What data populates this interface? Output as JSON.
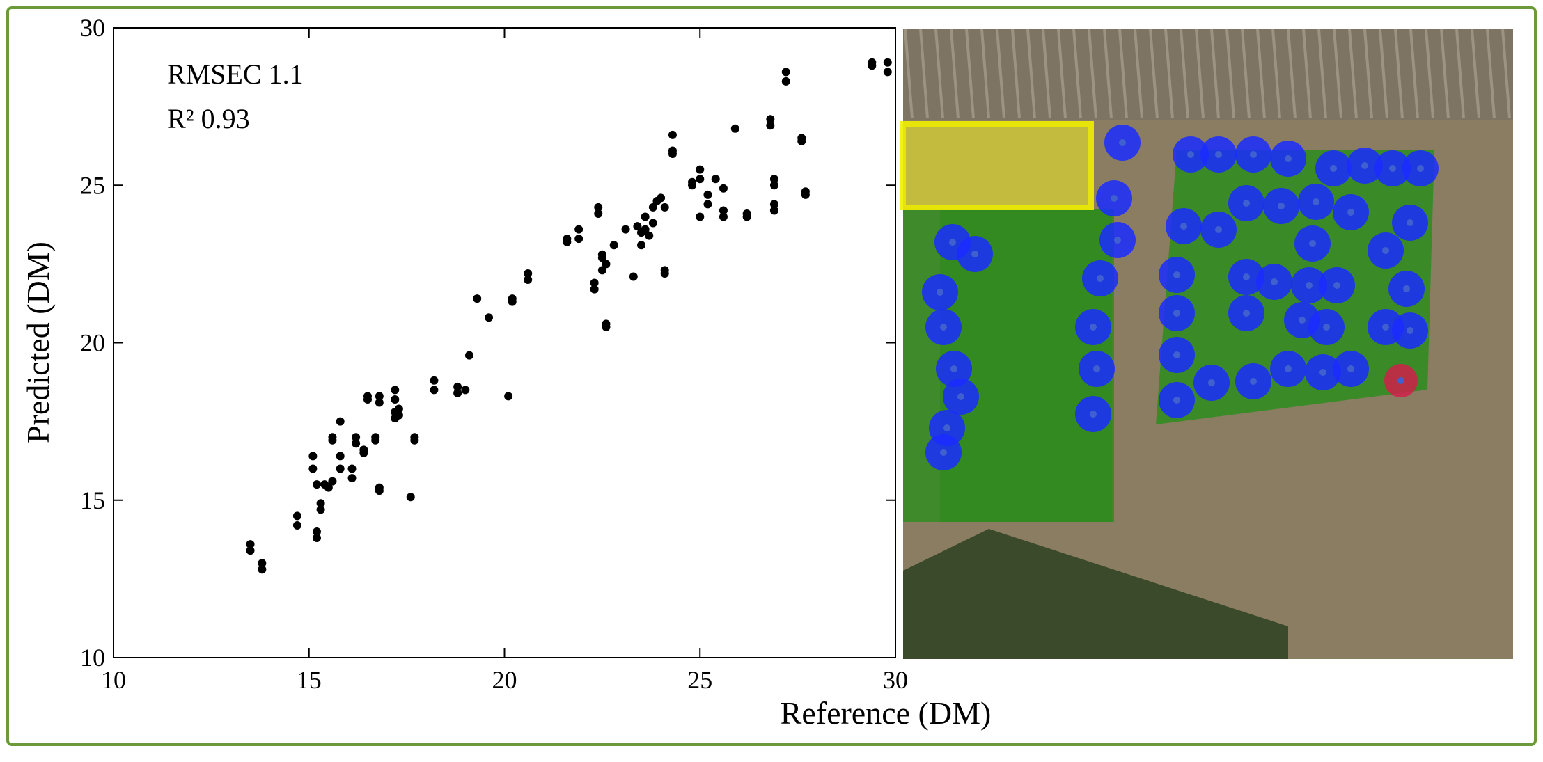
{
  "chart_data": {
    "type": "scatter",
    "xlabel": "Reference (DM)",
    "ylabel": "Predicted (DM)",
    "annotations": [
      "RMSEC 1.1",
      "R² 0.93"
    ],
    "xlim": [
      10,
      30
    ],
    "ylim": [
      10,
      30
    ],
    "xticks": [
      10,
      15,
      20,
      25,
      30
    ],
    "yticks": [
      10,
      15,
      20,
      25,
      30
    ],
    "color": "#000000",
    "x": [
      13.5,
      13.5,
      13.8,
      13.8,
      14.7,
      14.7,
      15.1,
      15.1,
      15.2,
      15.2,
      15.2,
      15.3,
      15.3,
      15.4,
      15.5,
      15.6,
      15.6,
      15.6,
      15.8,
      15.8,
      15.8,
      16.1,
      16.1,
      16.2,
      16.2,
      16.4,
      16.4,
      16.5,
      16.5,
      16.7,
      16.7,
      16.8,
      16.8,
      16.8,
      16.8,
      17.2,
      17.2,
      17.2,
      17.2,
      17.3,
      17.3,
      17.7,
      17.7,
      17.6,
      18.2,
      18.2,
      18.8,
      18.8,
      19.0,
      19.1,
      19.3,
      19.6,
      20.1,
      20.2,
      20.2,
      20.6,
      20.6,
      21.6,
      21.6,
      21.9,
      21.9,
      22.3,
      22.3,
      22.4,
      22.4,
      22.5,
      22.5,
      22.5,
      22.6,
      22.6,
      22.6,
      22.8,
      23.1,
      23.3,
      23.4,
      23.5,
      23.5,
      23.6,
      23.6,
      23.7,
      23.8,
      23.8,
      23.9,
      24.0,
      24.1,
      24.1,
      24.1,
      24.3,
      24.3,
      24.3,
      24.8,
      24.8,
      25.0,
      25.0,
      25.0,
      25.2,
      25.2,
      25.4,
      25.6,
      25.6,
      25.6,
      25.9,
      26.2,
      26.2,
      26.8,
      26.8,
      26.9,
      26.9,
      26.9,
      26.9,
      27.2,
      27.2,
      27.6,
      27.6,
      27.7,
      27.7,
      29.4,
      29.4,
      29.8,
      29.8
    ],
    "y": [
      13.6,
      13.4,
      13.0,
      12.8,
      14.5,
      14.2,
      16.4,
      16.0,
      15.5,
      14.0,
      13.8,
      14.9,
      14.7,
      15.5,
      15.4,
      15.6,
      17.0,
      16.9,
      17.5,
      16.4,
      16.0,
      16.0,
      15.7,
      17.0,
      16.8,
      16.6,
      16.5,
      18.3,
      18.2,
      17.0,
      16.9,
      18.3,
      18.1,
      15.4,
      15.3,
      18.5,
      18.2,
      17.8,
      17.6,
      17.9,
      17.7,
      17.0,
      16.9,
      15.1,
      18.8,
      18.5,
      18.6,
      18.4,
      18.5,
      19.6,
      21.4,
      20.8,
      18.3,
      21.4,
      21.3,
      22.2,
      22.0,
      23.2,
      23.3,
      23.6,
      23.3,
      21.9,
      21.7,
      24.3,
      24.1,
      22.7,
      22.8,
      22.3,
      22.5,
      20.6,
      20.5,
      23.1,
      23.6,
      22.1,
      23.7,
      23.5,
      23.1,
      24.0,
      23.6,
      23.4,
      23.8,
      24.3,
      24.5,
      24.6,
      24.3,
      22.3,
      22.2,
      26.6,
      26.1,
      26.0,
      25.1,
      25.0,
      25.5,
      25.2,
      24.0,
      24.7,
      24.4,
      25.2,
      24.9,
      24.2,
      24.0,
      26.8,
      24.1,
      24.0,
      27.1,
      26.9,
      25.2,
      25.0,
      24.4,
      24.2,
      28.6,
      28.3,
      26.4,
      26.5,
      24.8,
      24.7,
      28.9,
      28.8,
      28.9,
      28.6
    ]
  }
}
